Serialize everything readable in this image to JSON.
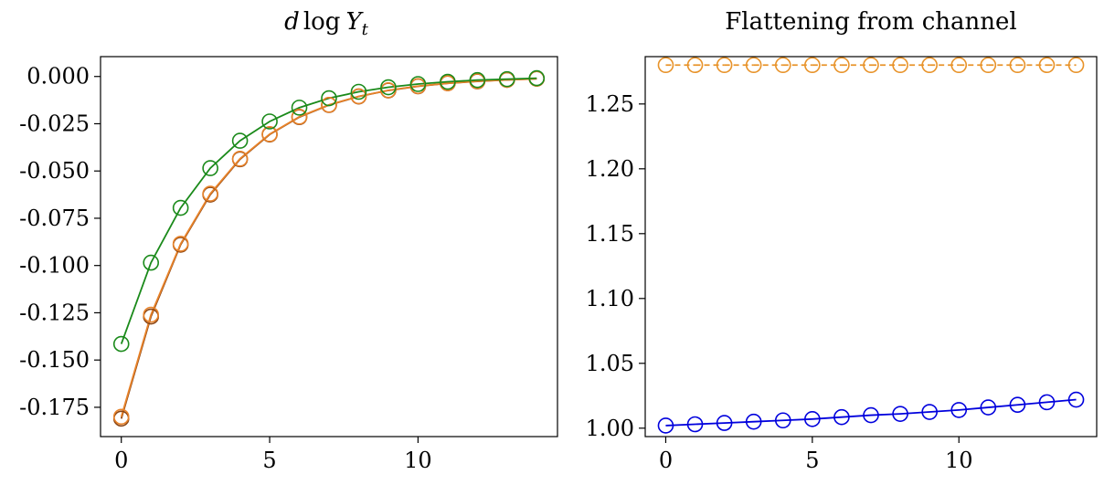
{
  "chart_data": [
    {
      "type": "line",
      "title": "d log Y_t",
      "title_parts": {
        "base": "d",
        "op": "log",
        "var": "Y",
        "sub": "t"
      },
      "xlabel": "",
      "ylabel": "",
      "xlim": [
        -0.7,
        14.7
      ],
      "ylim": [
        -0.1905,
        0.0105
      ],
      "xticks": [
        0,
        5,
        10
      ],
      "xtick_labels": [
        "0",
        "5",
        "10"
      ],
      "yticks": [
        0.0,
        -0.025,
        -0.05,
        -0.075,
        -0.1,
        -0.125,
        -0.15,
        -0.175
      ],
      "ytick_labels": [
        "0.000",
        "-0.025",
        "-0.050",
        "-0.075",
        "-0.100",
        "-0.125",
        "-0.150",
        "-0.175"
      ],
      "grid": false,
      "legend": "none",
      "x": [
        0,
        1,
        2,
        3,
        4,
        5,
        6,
        7,
        8,
        9,
        10,
        11,
        12,
        13,
        14
      ],
      "series": [
        {
          "color": "#8B4513",
          "line": "solid",
          "marker": "circle",
          "values": [
            -0.181,
            -0.127,
            -0.089,
            -0.0625,
            -0.0438,
            -0.0307,
            -0.0215,
            -0.0151,
            -0.0106,
            -0.0074,
            -0.0052,
            -0.0036,
            -0.0026,
            -0.0018,
            -0.0012
          ]
        },
        {
          "color": "#E8832A",
          "line": "solid",
          "marker": "circle",
          "values": [
            -0.18,
            -0.126,
            -0.0885,
            -0.062,
            -0.0435,
            -0.0305,
            -0.0213,
            -0.015,
            -0.0105,
            -0.0073,
            -0.0051,
            -0.0036,
            -0.0025,
            -0.0018,
            -0.0012
          ]
        },
        {
          "color": "#1A8A1A",
          "line": "solid",
          "marker": "circle",
          "values": [
            -0.1415,
            -0.0985,
            -0.0695,
            -0.0485,
            -0.034,
            -0.0238,
            -0.0165,
            -0.0115,
            -0.0081,
            -0.0057,
            -0.004,
            -0.0028,
            -0.0019,
            -0.0014,
            -0.0009
          ]
        }
      ]
    },
    {
      "type": "line",
      "title": "Flattening from channel",
      "xlabel": "",
      "ylabel": "",
      "xlim": [
        -0.7,
        14.7
      ],
      "ylim": [
        0.9935,
        1.2865
      ],
      "xticks": [
        0,
        5,
        10
      ],
      "xtick_labels": [
        "0",
        "5",
        "10"
      ],
      "yticks": [
        1.0,
        1.05,
        1.1,
        1.15,
        1.2,
        1.25
      ],
      "ytick_labels": [
        "1.00",
        "1.05",
        "1.10",
        "1.15",
        "1.20",
        "1.25"
      ],
      "grid": false,
      "legend": "none",
      "x": [
        0,
        1,
        2,
        3,
        4,
        5,
        6,
        7,
        8,
        9,
        10,
        11,
        12,
        13,
        14
      ],
      "series": [
        {
          "color": "#E8932A",
          "line": "dashed",
          "marker": "circle",
          "values": [
            1.28,
            1.28,
            1.28,
            1.28,
            1.28,
            1.28,
            1.28,
            1.28,
            1.28,
            1.28,
            1.28,
            1.28,
            1.28,
            1.28,
            1.28
          ]
        },
        {
          "color": "#0000DD",
          "line": "solid",
          "marker": "circle",
          "values": [
            1.002,
            1.003,
            1.004,
            1.005,
            1.006,
            1.007,
            1.0085,
            1.01,
            1.011,
            1.0125,
            1.014,
            1.016,
            1.018,
            1.02,
            1.022
          ]
        }
      ]
    }
  ]
}
